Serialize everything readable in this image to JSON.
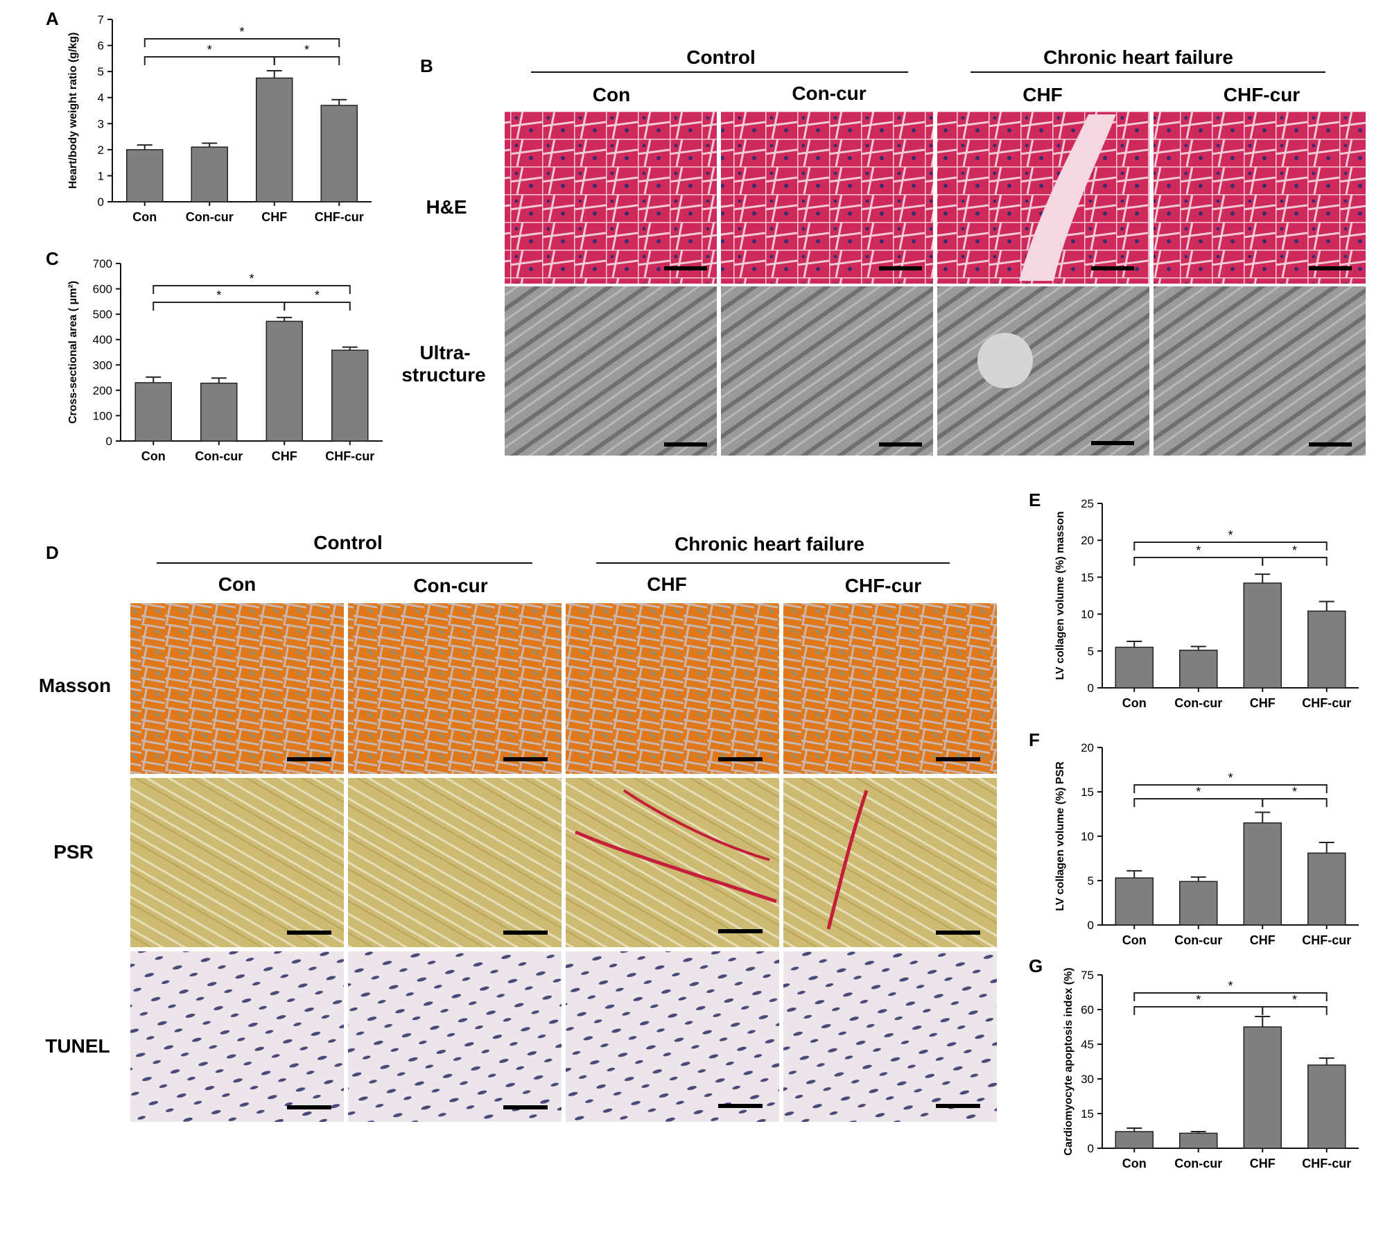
{
  "figure": {
    "panel_letters": {
      "A": "A",
      "B": "B",
      "C": "C",
      "D": "D",
      "E": "E",
      "F": "F",
      "G": "G"
    },
    "micrographs_B": {
      "group_headers": [
        "Control",
        "Chronic heart failure"
      ],
      "columns": [
        "Con",
        "Con-cur",
        "CHF",
        "CHF-cur"
      ],
      "row_labels": [
        "H&E",
        "Ultra-",
        "structure"
      ],
      "tiles": [
        [
          "he-con",
          "he-concur",
          "he-chf",
          "he-chfcur"
        ],
        [
          "em-con",
          "em-concur",
          "em-chf",
          "em-chfcur"
        ]
      ]
    },
    "micrographs_D": {
      "group_headers": [
        "Control",
        "Chronic heart failure"
      ],
      "columns": [
        "Con",
        "Con-cur",
        "CHF",
        "CHF-cur"
      ],
      "row_labels": [
        "Masson",
        "PSR",
        "TUNEL"
      ],
      "tiles": [
        [
          "masson-con",
          "masson-concur",
          "masson-chf",
          "masson-chfcur"
        ],
        [
          "psr-con",
          "psr-concur",
          "psr-chf",
          "psr-chfcur"
        ],
        [
          "tunel-con",
          "tunel-concur",
          "tunel-chf",
          "tunel-chfcur"
        ]
      ]
    }
  },
  "colors": {
    "bar": "#7f7f7f",
    "he": "#cf2a5c",
    "em": "#9a9a9a",
    "masson": "#e0781c",
    "psr": "#cdbb74",
    "tunel": "#ece6ea"
  },
  "chart_data": [
    {
      "panel": "A",
      "type": "bar",
      "categories": [
        "Con",
        "Con-cur",
        "CHF",
        "CHF-cur"
      ],
      "values": [
        2.0,
        2.1,
        4.75,
        3.7
      ],
      "errors": [
        0.18,
        0.15,
        0.28,
        0.22
      ],
      "ylabel": "Heart/body weight ratio (g/kg)",
      "ylim": [
        0,
        7
      ],
      "yticks": [
        0,
        1,
        2,
        3,
        4,
        5,
        6,
        7
      ],
      "significance": [
        "*",
        "*",
        "*"
      ]
    },
    {
      "panel": "C",
      "type": "bar",
      "categories": [
        "Con",
        "Con-cur",
        "CHF",
        "CHF-cur"
      ],
      "values": [
        230,
        228,
        472,
        358
      ],
      "errors": [
        22,
        20,
        15,
        12
      ],
      "ylabel": "Cross-sectional area ( μm²)",
      "ylim": [
        0,
        700
      ],
      "yticks": [
        0,
        100,
        200,
        300,
        400,
        500,
        600,
        700
      ],
      "significance": [
        "*",
        "*",
        "*"
      ]
    },
    {
      "panel": "E",
      "type": "bar",
      "categories": [
        "Con",
        "Con-cur",
        "CHF",
        "CHF-cur"
      ],
      "values": [
        5.5,
        5.1,
        14.2,
        10.4
      ],
      "errors": [
        0.8,
        0.5,
        1.2,
        1.3
      ],
      "ylabel": "LV collagen volume (%) masson",
      "ylim": [
        0,
        25
      ],
      "yticks": [
        0,
        5,
        10,
        15,
        20,
        25
      ],
      "significance": [
        "*",
        "*",
        "*"
      ]
    },
    {
      "panel": "F",
      "type": "bar",
      "categories": [
        "Con",
        "Con-cur",
        "CHF",
        "CHF-cur"
      ],
      "values": [
        5.3,
        4.9,
        11.5,
        8.1
      ],
      "errors": [
        0.8,
        0.5,
        1.2,
        1.2
      ],
      "ylabel": "LV collagen volume (%) PSR",
      "ylim": [
        0,
        20
      ],
      "yticks": [
        0,
        5,
        10,
        15,
        20
      ],
      "significance": [
        "*",
        "*",
        "*"
      ]
    },
    {
      "panel": "G",
      "type": "bar",
      "categories": [
        "Con",
        "Con-cur",
        "CHF",
        "CHF-cur"
      ],
      "values": [
        7.2,
        6.5,
        52.5,
        36.0
      ],
      "errors": [
        1.5,
        0.7,
        4.5,
        3.0
      ],
      "ylabel": "Cardiomyocyte apoptosis index (%)",
      "ylim": [
        0,
        75
      ],
      "yticks": [
        0,
        15,
        30,
        45,
        60,
        75
      ],
      "significance": [
        "*",
        "*",
        "*"
      ]
    }
  ]
}
